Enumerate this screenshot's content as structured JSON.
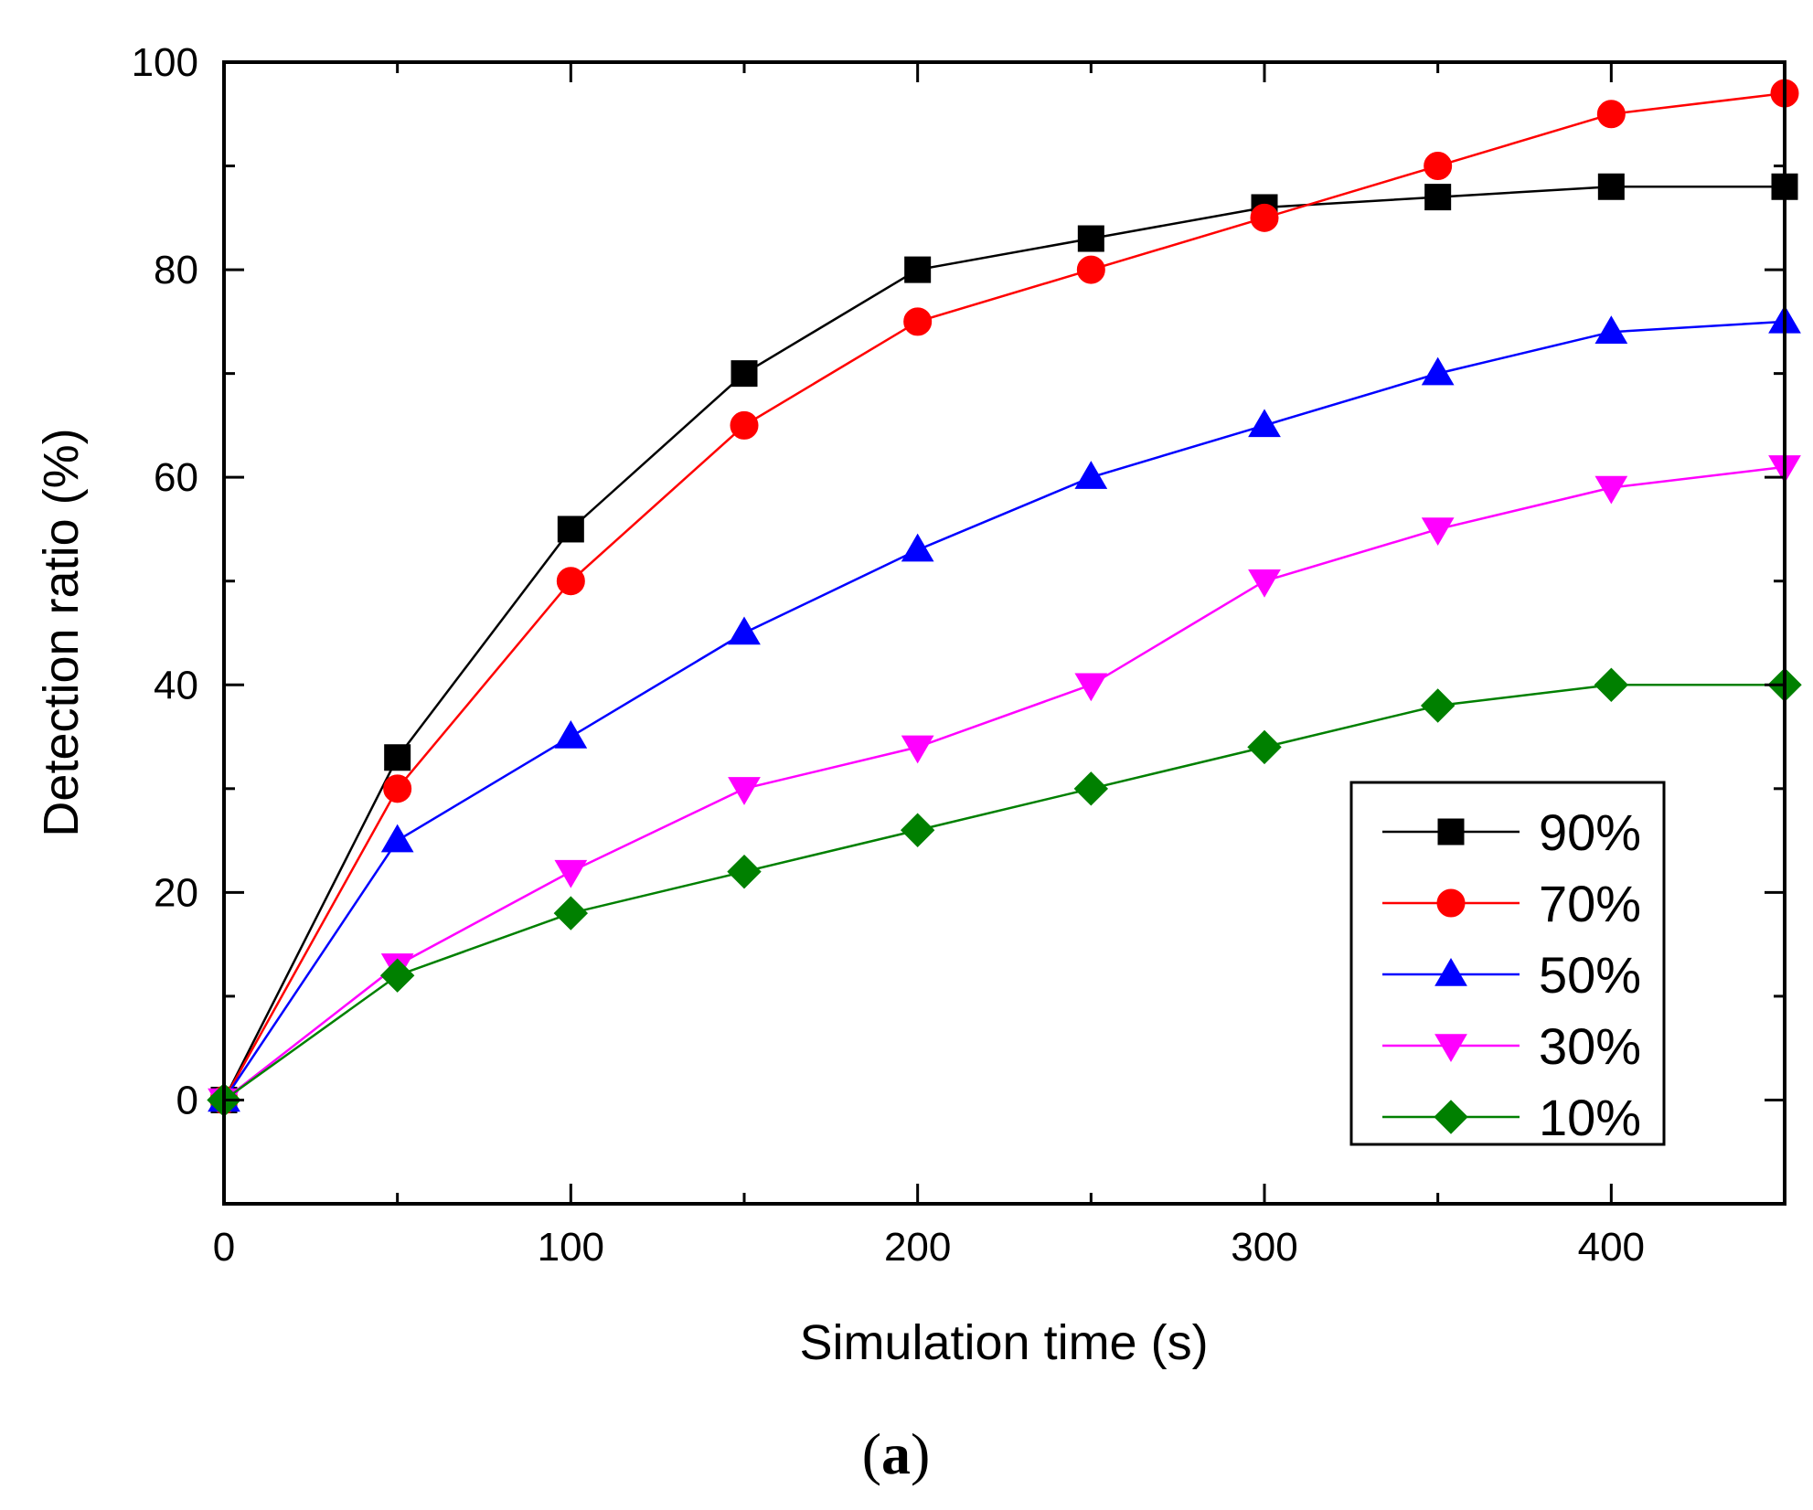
{
  "chart_data": {
    "type": "line",
    "title": "",
    "xlabel": "Simulation time (s)",
    "ylabel": "Detection ratio (%)",
    "xlim": [
      0,
      450
    ],
    "ylim": [
      -10,
      100
    ],
    "xticks": [
      0,
      100,
      200,
      300,
      400
    ],
    "yticks": [
      0,
      20,
      40,
      60,
      80,
      100
    ],
    "x": [
      0,
      50,
      100,
      150,
      200,
      250,
      300,
      350,
      400,
      450
    ],
    "series": [
      {
        "name": "90%",
        "color": "#000000",
        "marker": "square",
        "values": [
          0,
          33,
          55,
          70,
          80,
          83,
          86,
          87,
          88,
          88
        ]
      },
      {
        "name": "70%",
        "color": "#ff0000",
        "marker": "circle",
        "values": [
          0,
          30,
          50,
          65,
          75,
          80,
          85,
          90,
          95,
          97
        ]
      },
      {
        "name": "50%",
        "color": "#0000ff",
        "marker": "triangle-up",
        "values": [
          0,
          25,
          35,
          45,
          53,
          60,
          65,
          70,
          74,
          75
        ]
      },
      {
        "name": "30%",
        "color": "#ff00ff",
        "marker": "triangle-down",
        "values": [
          0,
          13,
          22,
          30,
          34,
          40,
          50,
          55,
          59,
          61
        ]
      },
      {
        "name": "10%",
        "color": "#008000",
        "marker": "diamond",
        "values": [
          0,
          12,
          18,
          22,
          26,
          30,
          34,
          38,
          40,
          40
        ]
      }
    ],
    "legend_position": "bottom-right",
    "grid": false
  },
  "caption": {
    "open": "(",
    "letter": "a",
    "close": ")"
  }
}
